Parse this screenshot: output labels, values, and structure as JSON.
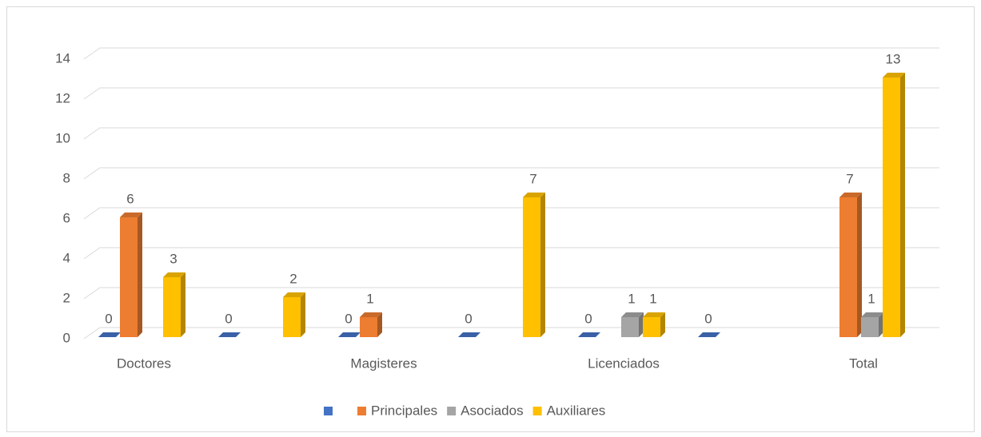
{
  "chart_data": {
    "type": "bar3d",
    "categories": [
      "Doctores",
      null,
      "Magisteres",
      null,
      "Licenciados",
      null,
      "Total"
    ],
    "series": [
      {
        "color": "#4472c4",
        "values": [
          0,
          0,
          0,
          0,
          0,
          0,
          null
        ]
      },
      {
        "name": "Principales",
        "color": "#ed7d31",
        "values": [
          6,
          null,
          1,
          null,
          null,
          null,
          7
        ]
      },
      {
        "name": "Asociados",
        "color": "#a5a5a5",
        "values": [
          null,
          null,
          null,
          null,
          1,
          null,
          1
        ]
      },
      {
        "name": "Auxiliares",
        "color": "#ffc000",
        "values": [
          3,
          2,
          null,
          7,
          1,
          null,
          13
        ]
      }
    ],
    "ylim": [
      0,
      14
    ],
    "yticks": [
      0,
      2,
      4,
      6,
      8,
      10,
      12,
      14
    ],
    "grid": true,
    "legend": "bottom"
  }
}
